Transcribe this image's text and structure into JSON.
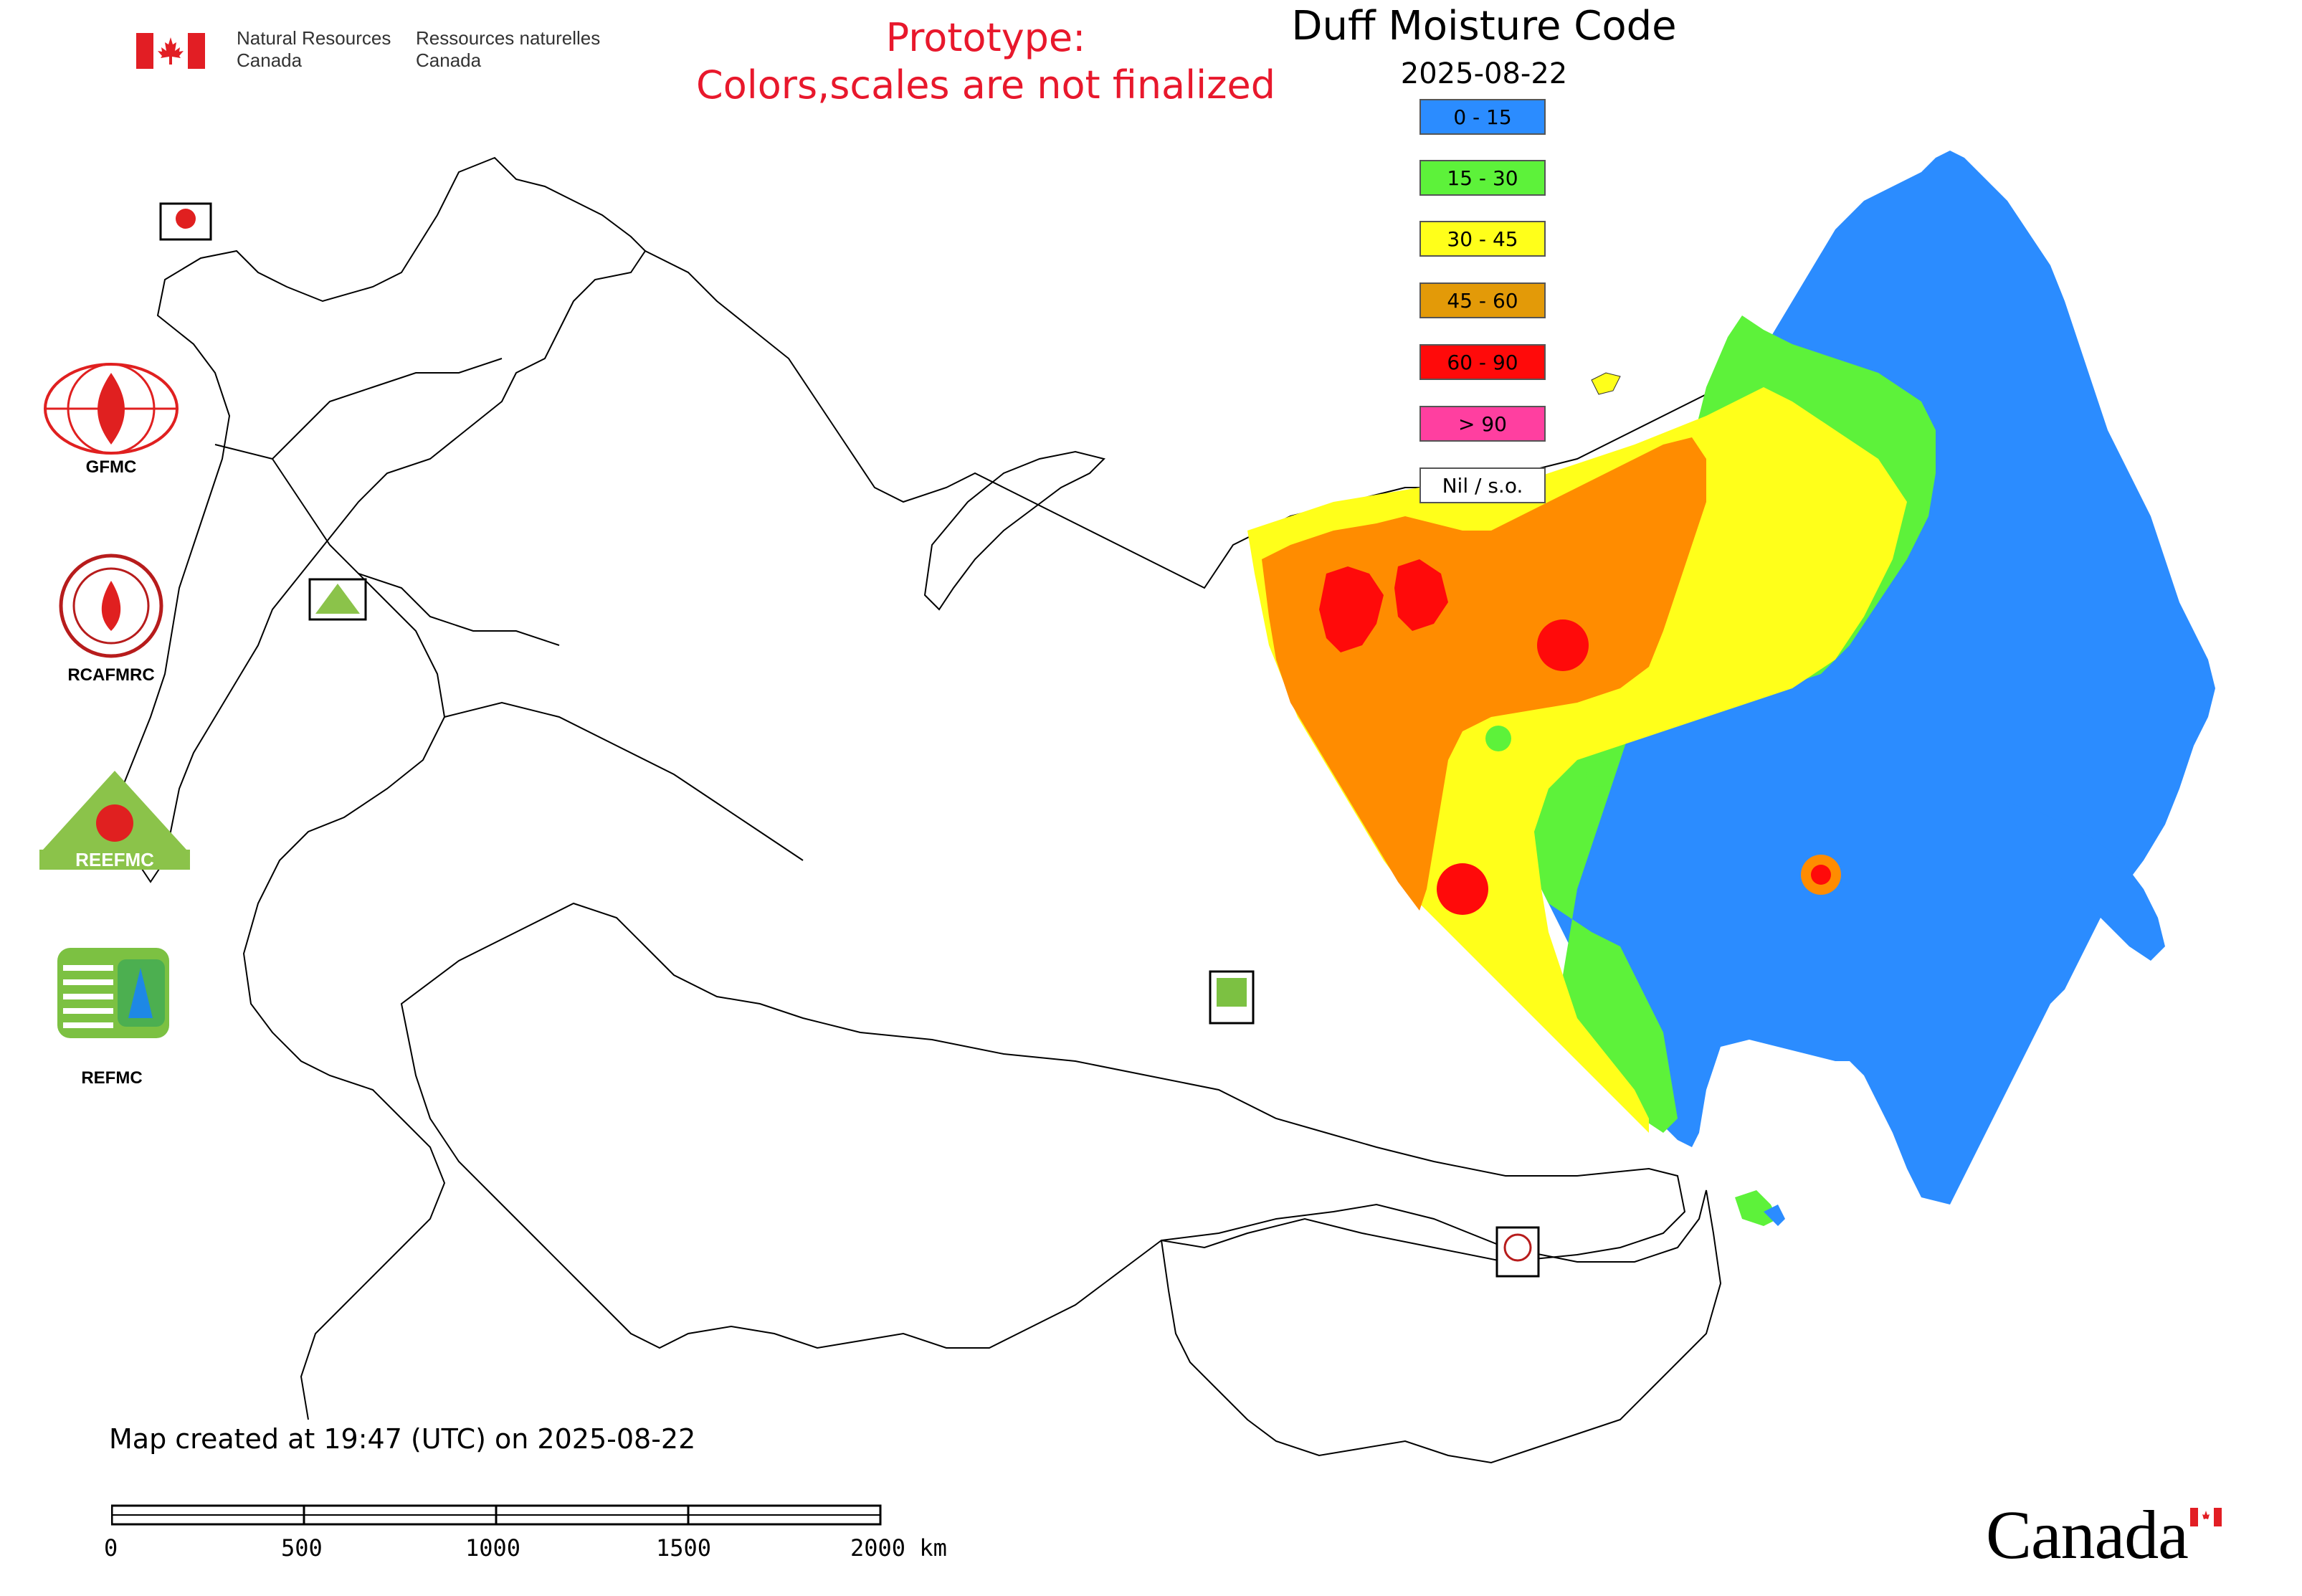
{
  "header": {
    "org_en_line1": "Natural Resources",
    "org_en_line2": "Canada",
    "org_fr_line1": "Ressources naturelles",
    "org_fr_line2": "Canada"
  },
  "notice": {
    "line1": "Prototype:",
    "line2": "Colors,scales are not finalized"
  },
  "map": {
    "title": "Duff Moisture Code",
    "date": "2025-08-22"
  },
  "legend": [
    {
      "label": "0 - 15",
      "color": "#2b8cff"
    },
    {
      "label": "15 - 30",
      "color": "#5df23a"
    },
    {
      "label": "30 - 45",
      "color": "#ffff1a"
    },
    {
      "label": "45 - 60",
      "color": "#e39a08"
    },
    {
      "label": "60 - 90",
      "color": "#ff0a0a"
    },
    {
      "label": "> 90",
      "color": "#ff3fa0"
    },
    {
      "label": "Nil / s.o.",
      "color": "#ffffff"
    }
  ],
  "side_logos": [
    {
      "label": "GFMC"
    },
    {
      "label": "RCAFMRC"
    },
    {
      "label": "REEFMC"
    },
    {
      "label": "REFMC"
    }
  ],
  "footer": {
    "credit": "Map created at 19:47 (UTC) on 2025-08-22",
    "scale_ticks": [
      "0",
      "500",
      "1000",
      "1500",
      "2000 km"
    ],
    "wordmark": "Canada"
  }
}
